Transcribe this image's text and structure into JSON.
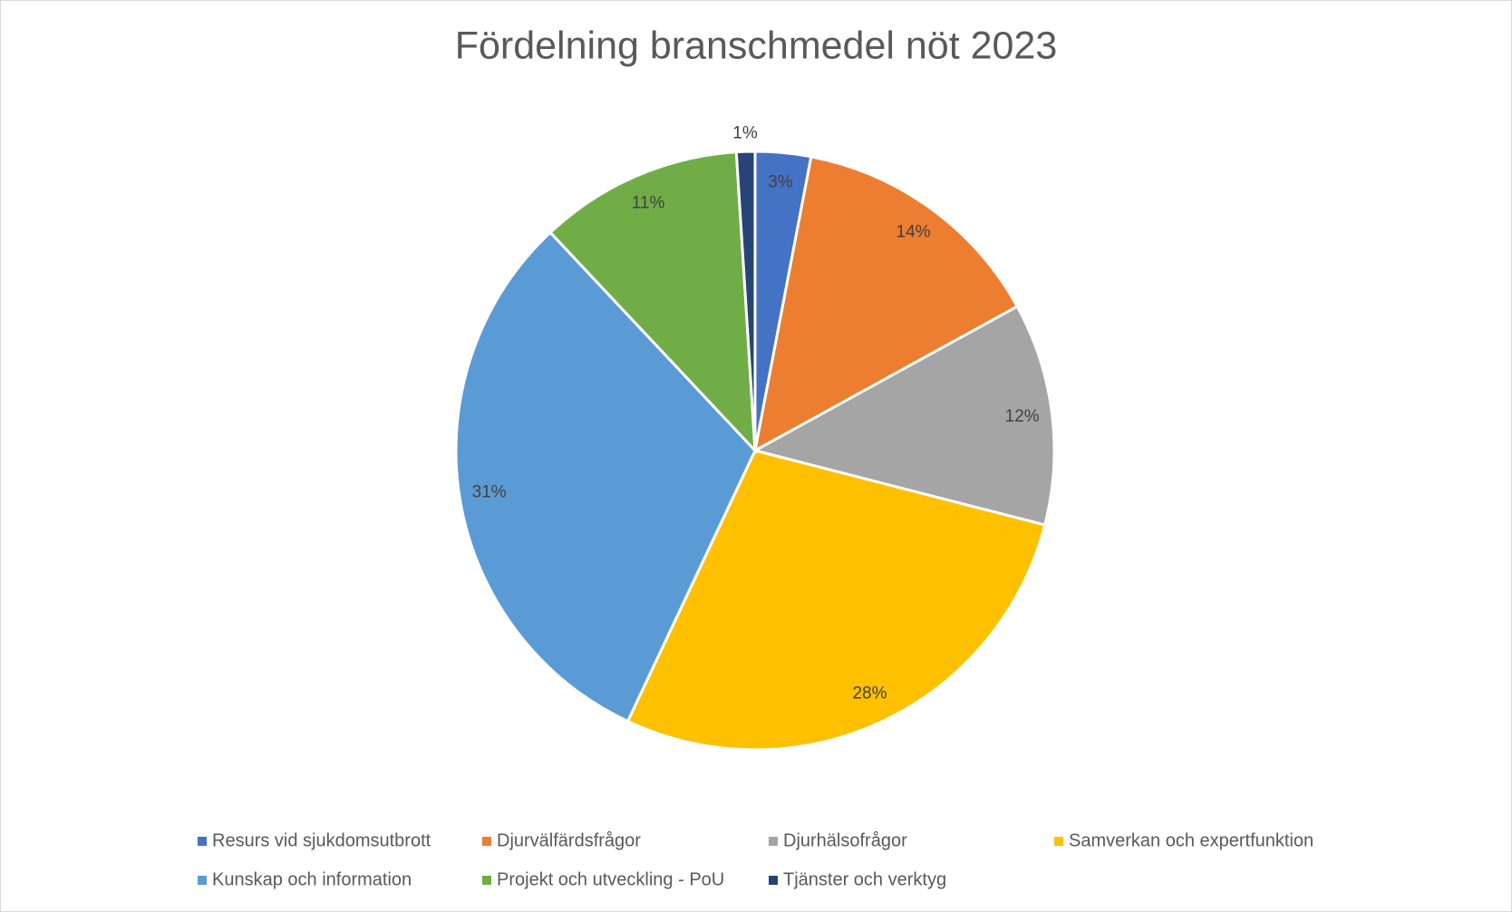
{
  "chart_data": {
    "type": "pie",
    "title": "Fördelning branschmedel nöt 2023",
    "categories": [
      "Resurs vid sjukdomsutbrott",
      "Djurvälfärdsfrågor",
      "Djurhälsofrågor",
      "Samverkan och expertfunktion",
      "Kunskap och information",
      "Projekt och utveckling - PoU",
      "Tjänster och verktyg"
    ],
    "values": [
      3,
      14,
      12,
      28,
      31,
      11,
      1
    ],
    "value_labels": [
      "3%",
      "14%",
      "12%",
      "28%",
      "31%",
      "11%",
      "1%"
    ],
    "colors": [
      "#4472c4",
      "#ed7d31",
      "#a5a5a5",
      "#ffc000",
      "#5b9bd5",
      "#70ad47",
      "#264478"
    ],
    "legend": "bottom"
  }
}
